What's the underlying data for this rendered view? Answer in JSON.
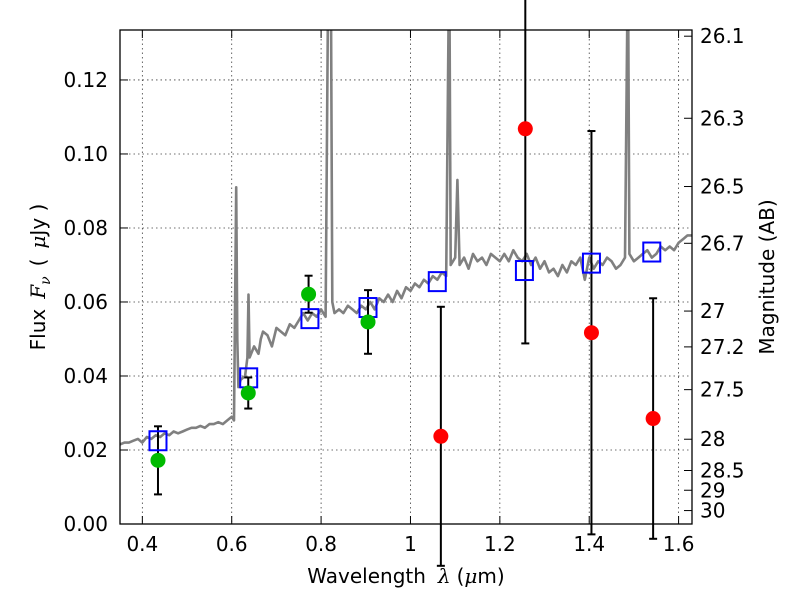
{
  "chart_data": {
    "type": "scatter",
    "xlabel": "Wavelength",
    "xlabel_symbol": "λ",
    "xlabel_unit_prefix": "(",
    "xlabel_unit_mu": "μ",
    "xlabel_unit_rest": "m)",
    "ylabel": "Flux",
    "ylabel_symbol": "F",
    "ylabel_symbol_sub": "ν",
    "ylabel_unit_prefix": "(",
    "ylabel_unit_mu": "μ",
    "ylabel_unit_rest": "Jy )",
    "y2label": "Magnitude (AB)",
    "xlim": [
      0.35,
      1.63
    ],
    "ylim": [
      0.0,
      0.1335
    ],
    "grid": true,
    "x_ticks": [
      0.4,
      0.6,
      0.8,
      1.0,
      1.2,
      1.4,
      1.6
    ],
    "x_tick_labels": [
      "0.4",
      "0.6",
      "0.8",
      "1",
      "1.2",
      "1.4",
      "1.6"
    ],
    "y_ticks": [
      0.0,
      0.02,
      0.04,
      0.06,
      0.08,
      0.1,
      0.12
    ],
    "y_tick_labels": [
      "0.00",
      "0.02",
      "0.04",
      "0.06",
      "0.08",
      "0.10",
      "0.12"
    ],
    "mag_ticks": [
      26.1,
      26.3,
      26.5,
      26.7,
      27,
      27.2,
      27.5,
      28,
      28.5,
      29,
      30
    ],
    "mag_tick_labels": [
      "26.1",
      "26.3",
      "26.5",
      "26.7",
      "27",
      "27.2",
      "27.5",
      "28",
      "28.5",
      "29",
      "30"
    ],
    "colors": {
      "model": "#808080",
      "model_photometry": "#0000ff",
      "optical_detections": "#00bb00",
      "nir_detections": "#ff0000",
      "errorbar": "#000000"
    },
    "series": [
      {
        "kind": "model_spectrum",
        "x": [
          0.35,
          0.36,
          0.37,
          0.38,
          0.39,
          0.4,
          0.41,
          0.42,
          0.43,
          0.44,
          0.45,
          0.46,
          0.47,
          0.48,
          0.49,
          0.5,
          0.51,
          0.52,
          0.53,
          0.54,
          0.55,
          0.56,
          0.57,
          0.58,
          0.59,
          0.6,
          0.605,
          0.61,
          0.6125,
          0.615,
          0.62,
          0.63,
          0.635,
          0.6375,
          0.64,
          0.65,
          0.66,
          0.665,
          0.67,
          0.68,
          0.69,
          0.7,
          0.71,
          0.72,
          0.73,
          0.74,
          0.75,
          0.76,
          0.77,
          0.78,
          0.79,
          0.8,
          0.81,
          0.815,
          0.82,
          0.8225,
          0.825,
          0.83,
          0.84,
          0.85,
          0.86,
          0.87,
          0.88,
          0.89,
          0.9,
          0.91,
          0.92,
          0.93,
          0.94,
          0.95,
          0.96,
          0.97,
          0.98,
          0.99,
          1.0,
          1.01,
          1.02,
          1.03,
          1.04,
          1.05,
          1.06,
          1.07,
          1.08,
          1.085,
          1.0875,
          1.09,
          1.1,
          1.105,
          1.11,
          1.12,
          1.13,
          1.14,
          1.15,
          1.16,
          1.17,
          1.18,
          1.19,
          1.2,
          1.21,
          1.22,
          1.23,
          1.24,
          1.25,
          1.26,
          1.27,
          1.28,
          1.29,
          1.3,
          1.31,
          1.32,
          1.33,
          1.34,
          1.35,
          1.36,
          1.37,
          1.38,
          1.39,
          1.4,
          1.41,
          1.42,
          1.43,
          1.44,
          1.45,
          1.46,
          1.47,
          1.48,
          1.485,
          1.4875,
          1.49,
          1.5,
          1.51,
          1.52,
          1.53,
          1.54,
          1.55,
          1.56,
          1.57,
          1.58,
          1.59,
          1.6,
          1.61,
          1.62,
          1.63
        ],
        "y": [
          0.0215,
          0.022,
          0.022,
          0.0225,
          0.023,
          0.022,
          0.0235,
          0.023,
          0.024,
          0.0235,
          0.0245,
          0.024,
          0.025,
          0.0245,
          0.025,
          0.0255,
          0.026,
          0.026,
          0.0265,
          0.026,
          0.027,
          0.027,
          0.0275,
          0.027,
          0.028,
          0.029,
          0.028,
          0.091,
          0.05,
          0.037,
          0.039,
          0.04,
          0.045,
          0.062,
          0.045,
          0.048,
          0.046,
          0.05,
          0.052,
          0.051,
          0.048,
          0.053,
          0.052,
          0.051,
          0.054,
          0.053,
          0.055,
          0.057,
          0.055,
          0.057,
          0.056,
          0.058,
          0.056,
          0.134,
          0.134,
          0.134,
          0.06,
          0.057,
          0.058,
          0.057,
          0.059,
          0.058,
          0.057,
          0.059,
          0.058,
          0.06,
          0.058,
          0.061,
          0.06,
          0.062,
          0.06,
          0.063,
          0.061,
          0.064,
          0.063,
          0.065,
          0.064,
          0.066,
          0.065,
          0.067,
          0.066,
          0.068,
          0.067,
          0.134,
          0.134,
          0.07,
          0.072,
          0.093,
          0.07,
          0.072,
          0.069,
          0.073,
          0.071,
          0.072,
          0.07,
          0.073,
          0.072,
          0.071,
          0.073,
          0.071,
          0.074,
          0.072,
          0.071,
          0.073,
          0.07,
          0.072,
          0.069,
          0.071,
          0.068,
          0.069,
          0.067,
          0.07,
          0.068,
          0.071,
          0.07,
          0.072,
          0.066,
          0.072,
          0.069,
          0.071,
          0.07,
          0.072,
          0.071,
          0.069,
          0.07,
          0.072,
          0.134,
          0.134,
          0.073,
          0.071,
          0.072,
          0.073,
          0.074,
          0.072,
          0.073,
          0.075,
          0.074,
          0.075,
          0.074,
          0.076,
          0.077,
          0.078,
          0.078
        ]
      },
      {
        "kind": "model_photometry",
        "marker": "open-square",
        "x": [
          0.435,
          0.638,
          0.775,
          0.905,
          1.06,
          1.255,
          1.405,
          1.54
        ],
        "y": [
          0.0225,
          0.0395,
          0.0555,
          0.0585,
          0.0655,
          0.0685,
          0.0705,
          0.0735
        ]
      },
      {
        "kind": "optical_detections",
        "marker": "filled-circle",
        "x": [
          0.435,
          0.637,
          0.772,
          0.905
        ],
        "y": [
          0.0172,
          0.0354,
          0.0621,
          0.0546
        ],
        "err": [
          0.0092,
          0.0042,
          0.005,
          0.0086
        ]
      },
      {
        "kind": "nir_detections",
        "marker": "filled-circle",
        "x": [
          1.068,
          1.257,
          1.405,
          1.543
        ],
        "y": [
          0.0237,
          0.1068,
          0.0517,
          0.0285
        ],
        "err": [
          0.035,
          0.058,
          0.0545,
          0.0325
        ]
      }
    ]
  }
}
